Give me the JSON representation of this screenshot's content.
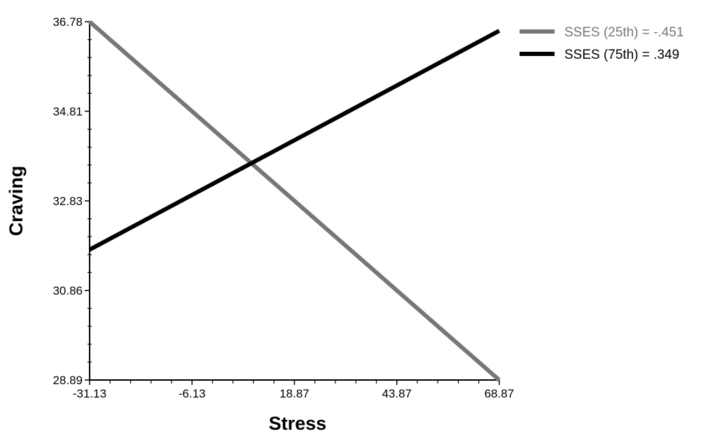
{
  "chart_data": {
    "type": "line",
    "xlabel": "Stress",
    "ylabel": "Craving",
    "xlim": [
      -31.13,
      68.87
    ],
    "ylim": [
      28.89,
      36.78
    ],
    "x_ticks": [
      "-31.13",
      "-6.13",
      "18.87",
      "43.87",
      "68.87"
    ],
    "y_ticks": [
      "28.89",
      "30.86",
      "32.83",
      "34.81",
      "36.78"
    ],
    "grid": false,
    "legend_position": "top-right",
    "series": [
      {
        "name": "SSES (25th) = -.451",
        "color": "#777777",
        "x": [
          -31.13,
          68.87
        ],
        "y": [
          36.78,
          28.89
        ]
      },
      {
        "name": "SSES (75th) = .349",
        "color": "#000000",
        "x": [
          -31.13,
          68.87
        ],
        "y": [
          31.76,
          36.58
        ]
      }
    ]
  }
}
